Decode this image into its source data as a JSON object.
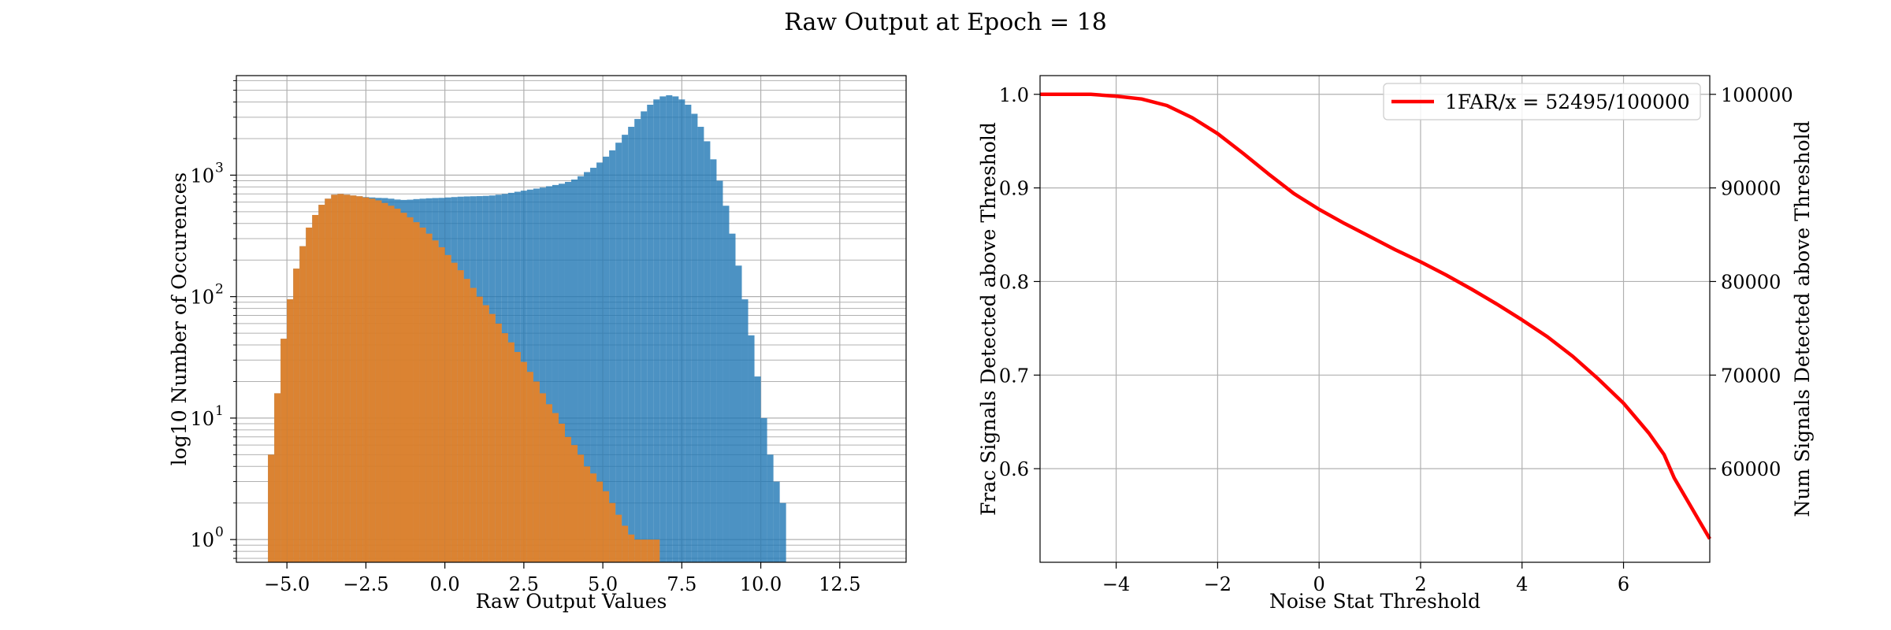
{
  "figure": {
    "suptitle": "Raw Output at Epoch = 18"
  },
  "chart_data": [
    {
      "type": "histogram",
      "xlabel": "Raw Output Values",
      "ylabel": "log10 Number of Occurences",
      "xlim": [
        -6.6,
        14.6
      ],
      "ylim": [
        0.65,
        6600
      ],
      "yscale": "log",
      "xticks": [
        -5.0,
        -2.5,
        0.0,
        2.5,
        5.0,
        7.5,
        10.0,
        12.5
      ],
      "xtick_labels": [
        "−5.0",
        "−2.5",
        "0.0",
        "2.5",
        "5.0",
        "7.5",
        "10.0",
        "12.5"
      ],
      "yticks": [
        1,
        10,
        100,
        1000
      ],
      "ytick_labels": [
        "10",
        "10",
        "10",
        "10"
      ],
      "ytick_exponents": [
        "0",
        "1",
        "2",
        "3"
      ],
      "grid": true,
      "series": [
        {
          "color": "#1f77b4",
          "alpha": 0.8,
          "bins": {
            "start": -5.6,
            "width": 0.2
          },
          "counts": [
            5,
            16,
            45,
            95,
            170,
            260,
            370,
            470,
            570,
            640,
            690,
            700,
            690,
            680,
            670,
            660,
            655,
            650,
            648,
            640,
            630,
            625,
            628,
            635,
            640,
            645,
            648,
            650,
            655,
            660,
            665,
            668,
            670,
            672,
            675,
            680,
            690,
            700,
            715,
            730,
            745,
            760,
            775,
            790,
            810,
            830,
            850,
            880,
            920,
            980,
            1060,
            1150,
            1270,
            1420,
            1600,
            1850,
            2150,
            2500,
            2900,
            3350,
            3800,
            4200,
            4450,
            4550,
            4450,
            4200,
            3800,
            3200,
            2500,
            1900,
            1350,
            900,
            560,
            330,
            180,
            95,
            48,
            22,
            10,
            5,
            3,
            2
          ]
        },
        {
          "color": "#ff7f0e",
          "alpha": 0.8,
          "bins": {
            "start": -5.6,
            "width": 0.2
          },
          "counts": [
            5,
            16,
            45,
            95,
            170,
            260,
            370,
            470,
            570,
            640,
            690,
            700,
            690,
            680,
            670,
            655,
            640,
            620,
            590,
            560,
            530,
            490,
            450,
            410,
            370,
            330,
            290,
            255,
            220,
            190,
            165,
            140,
            118,
            100,
            85,
            72,
            60,
            50,
            42,
            35,
            29,
            24,
            20,
            16,
            13,
            11,
            9,
            7,
            6,
            5,
            4,
            3.5,
            3,
            2.5,
            2,
            1.6,
            1.3,
            1.1,
            1,
            1,
            1,
            1
          ]
        }
      ]
    },
    {
      "type": "line",
      "xlabel": "Noise Stat Threshold",
      "ylabel": "Frac Signals Detected above Threshold",
      "ylabel_right": "Num Signals Detected above Threshold",
      "xlim": [
        -5.5,
        7.7
      ],
      "ylim": [
        0.5,
        1.02
      ],
      "ylim_right": [
        50000,
        102000
      ],
      "xticks": [
        -4,
        -2,
        0,
        2,
        4,
        6
      ],
      "xtick_labels": [
        "−4",
        "−2",
        "0",
        "2",
        "4",
        "6"
      ],
      "yticks": [
        0.6,
        0.7,
        0.8,
        0.9,
        1.0
      ],
      "ytick_labels": [
        "0.6",
        "0.7",
        "0.8",
        "0.9",
        "1.0"
      ],
      "yticks_right": [
        60000,
        70000,
        80000,
        90000,
        100000
      ],
      "ytick_labels_right": [
        "60000",
        "70000",
        "80000",
        "90000",
        "100000"
      ],
      "grid": true,
      "legend_position": "top-right",
      "series": [
        {
          "name": "1FAR/x = 52495/100000",
          "color": "#ff0000",
          "x": [
            -5.5,
            -4.5,
            -4.0,
            -3.5,
            -3.0,
            -2.5,
            -2.0,
            -1.5,
            -1.0,
            -0.5,
            0.0,
            0.5,
            1.0,
            1.5,
            2.0,
            2.5,
            3.0,
            3.5,
            4.0,
            4.5,
            5.0,
            5.5,
            6.0,
            6.5,
            6.8,
            7.0,
            7.7
          ],
          "y": [
            1.0,
            1.0,
            0.998,
            0.995,
            0.988,
            0.975,
            0.958,
            0.937,
            0.915,
            0.894,
            0.877,
            0.862,
            0.848,
            0.834,
            0.821,
            0.807,
            0.792,
            0.776,
            0.759,
            0.741,
            0.72,
            0.696,
            0.67,
            0.638,
            0.615,
            0.59,
            0.525
          ]
        }
      ]
    }
  ]
}
